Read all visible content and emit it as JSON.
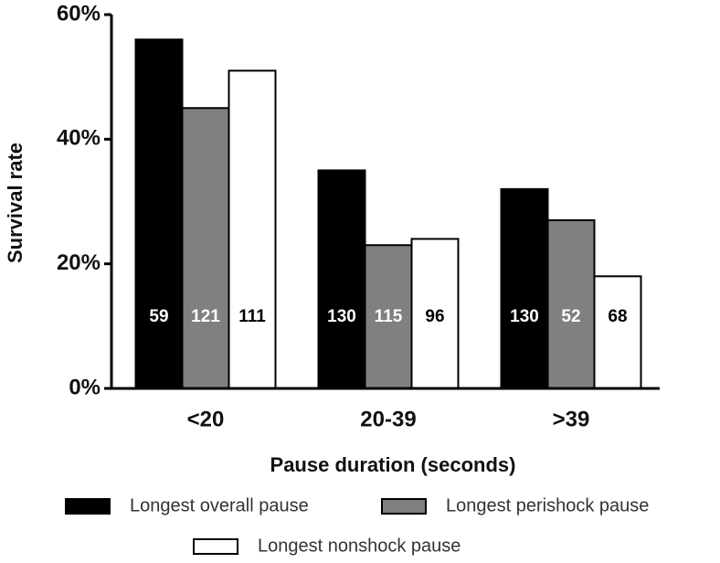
{
  "chart_data": {
    "type": "bar",
    "x_label": "Pause duration (seconds)",
    "y_label": "Survival rate",
    "categories": [
      "<20",
      "20-39",
      ">39"
    ],
    "series": [
      {
        "name": "Longest overall pause",
        "color": "#000000",
        "values": [
          56,
          35,
          32
        ],
        "n": [
          59,
          130,
          130
        ]
      },
      {
        "name": "Longest perishock pause",
        "color": "#808080",
        "values": [
          45,
          23,
          27
        ],
        "n": [
          121,
          115,
          52
        ]
      },
      {
        "name": "Longest nonshock pause",
        "color": "#ffffff",
        "values": [
          51,
          24,
          18
        ],
        "n": [
          111,
          96,
          68
        ]
      }
    ],
    "ylim": [
      0,
      60
    ],
    "yticks": [
      {
        "value": 0,
        "label": "0%"
      },
      {
        "value": 20,
        "label": "20%"
      },
      {
        "value": 40,
        "label": "40%"
      },
      {
        "value": 60,
        "label": "60%"
      }
    ],
    "legend": "bottom"
  }
}
